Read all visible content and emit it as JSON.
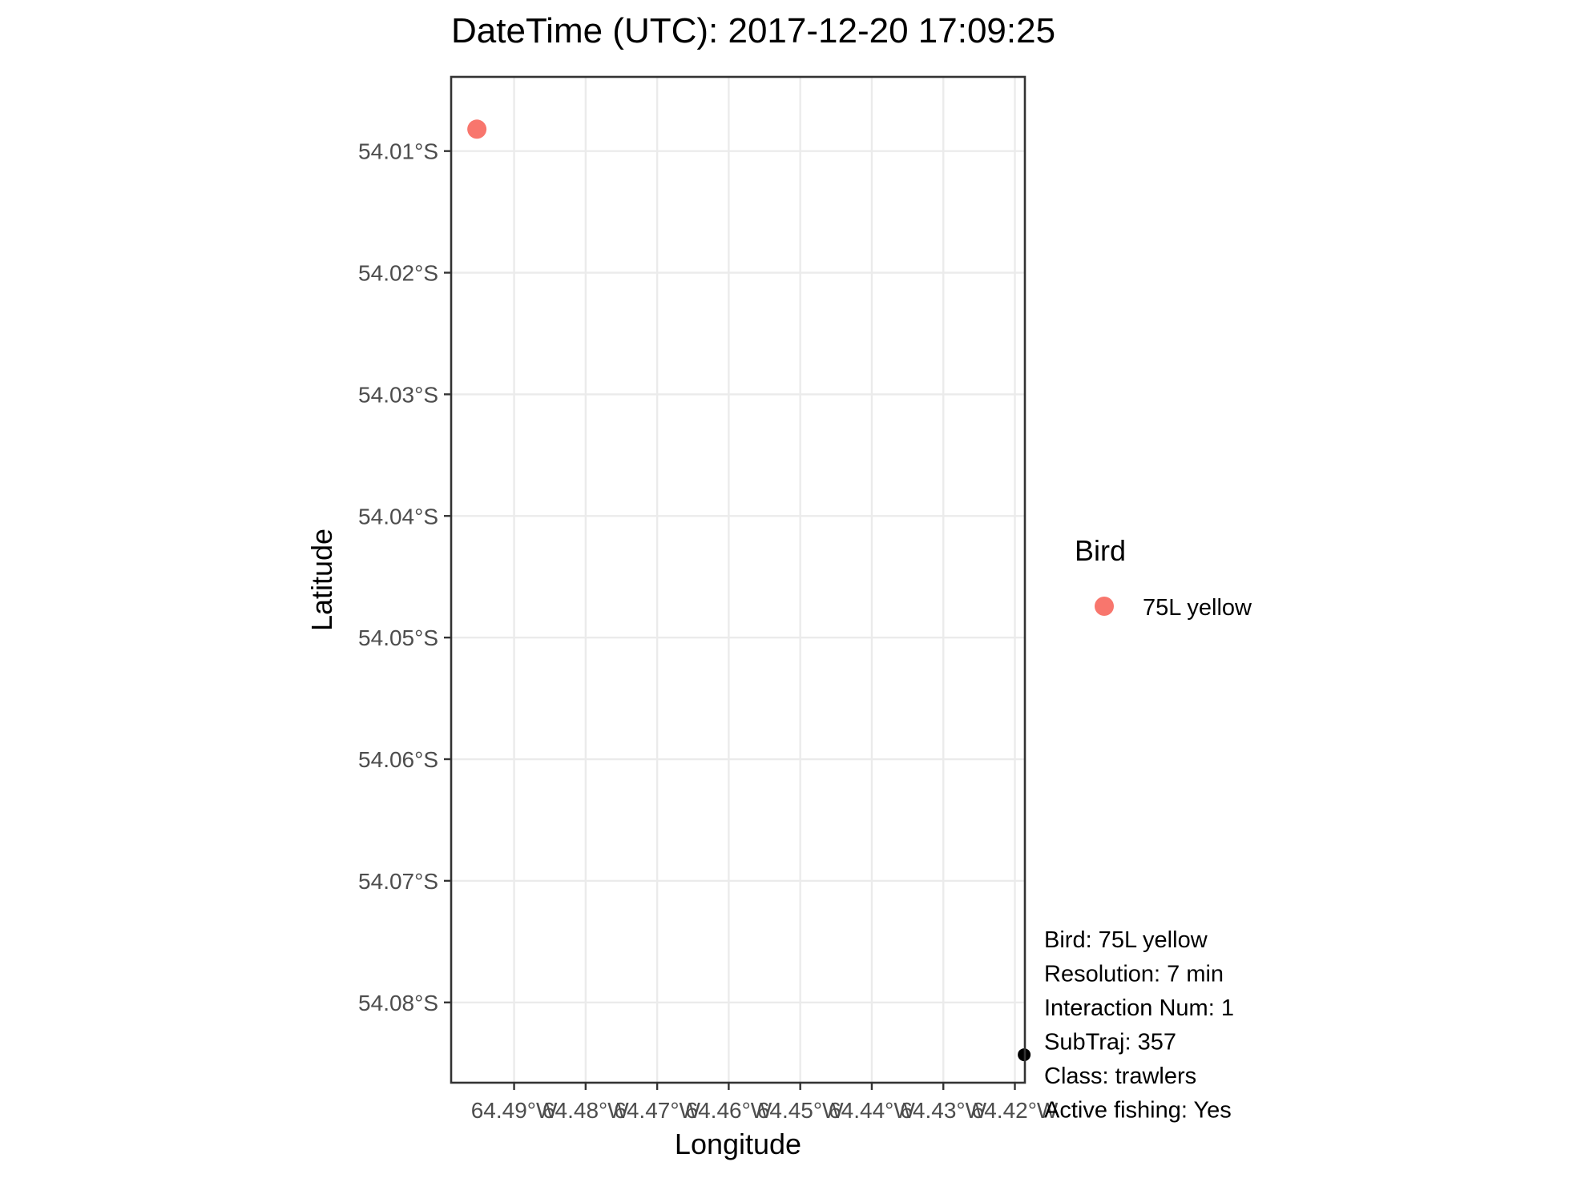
{
  "chart_data": {
    "type": "scatter",
    "title": "DateTime (UTC): 2017-12-20 17:09:25",
    "xlabel": "Longitude",
    "ylabel": "Latitude",
    "xlim": [
      -64.4988,
      -64.4186
    ],
    "ylim": [
      -54.0866,
      -54.0039
    ],
    "x_ticks": [
      -64.49,
      -64.48,
      -64.47,
      -64.46,
      -64.45,
      -64.44,
      -64.43,
      -64.42
    ],
    "x_tick_labels": [
      "64.49°W",
      "64.48°W",
      "64.47°W",
      "64.46°W",
      "64.45°W",
      "64.44°W",
      "64.43°W",
      "64.42°W"
    ],
    "y_ticks": [
      -54.01,
      -54.02,
      -54.03,
      -54.04,
      -54.05,
      -54.06,
      -54.07,
      -54.08
    ],
    "y_tick_labels": [
      "54.01°S",
      "54.02°S",
      "54.03°S",
      "54.04°S",
      "54.05°S",
      "54.06°S",
      "54.07°S",
      "54.08°S"
    ],
    "grid": true,
    "legend": {
      "title": "Bird",
      "placement": "right",
      "entries": [
        {
          "label": "75L yellow",
          "color": "#f8766d"
        }
      ]
    },
    "series": [
      {
        "name": "75L yellow",
        "color": "#f8766d",
        "points": [
          {
            "x": -64.4952,
            "y": -54.0082
          }
        ]
      },
      {
        "color": "#000000",
        "points": [
          {
            "x": -64.4187,
            "y": -54.0843
          }
        ]
      }
    ],
    "annotations": [
      "Bird: 75L yellow",
      "Resolution: 7 min",
      "Interaction Num: 1",
      "SubTraj: 357",
      "Class: trawlers",
      "Active fishing: Yes"
    ]
  }
}
